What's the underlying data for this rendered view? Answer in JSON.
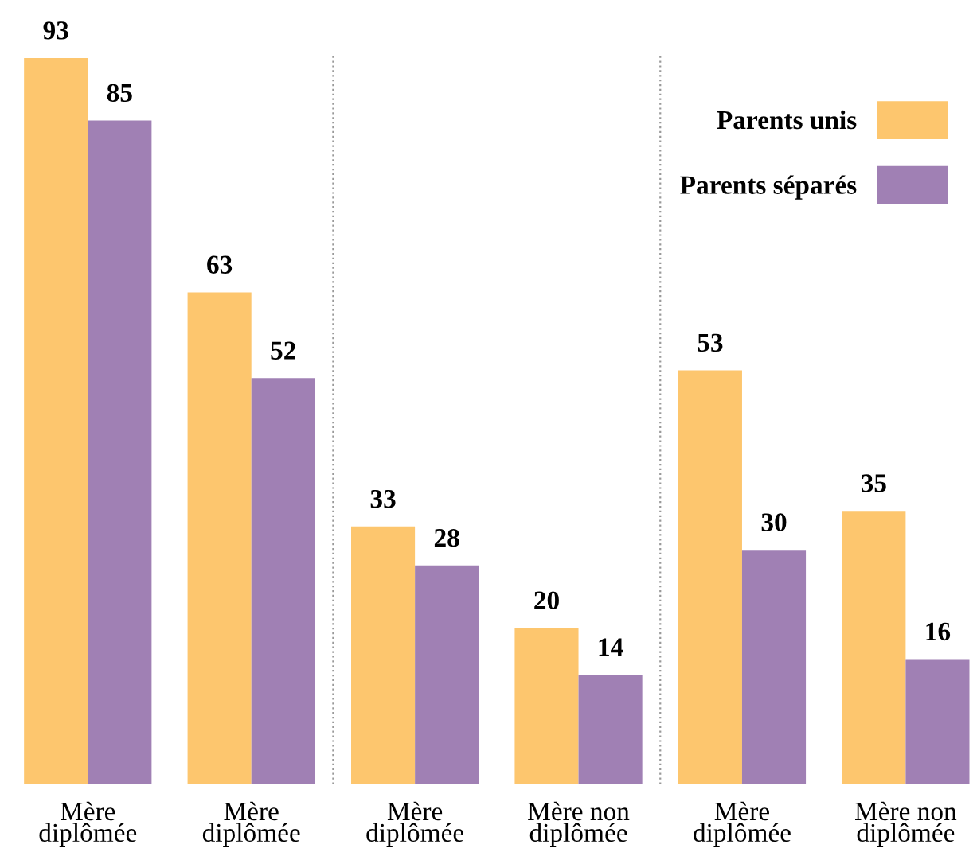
{
  "chart_data": {
    "type": "bar",
    "categories": [
      "Mère\ndiplômée",
      "Mère\ndiplômée",
      "Mère\ndiplômée",
      "Mère non\ndiplômée",
      "Mère\ndiplômée",
      "Mère non\ndiplômée"
    ],
    "series": [
      {
        "name": "Parents unis",
        "color": "#fdc66e",
        "values": [
          93,
          63,
          33,
          20,
          53,
          35
        ]
      },
      {
        "name": "Parents séparés",
        "color": "#a080b4",
        "values": [
          85,
          52,
          28,
          14,
          30,
          16
        ]
      }
    ],
    "data_labels": true,
    "legend": "top right",
    "grid": false
  }
}
